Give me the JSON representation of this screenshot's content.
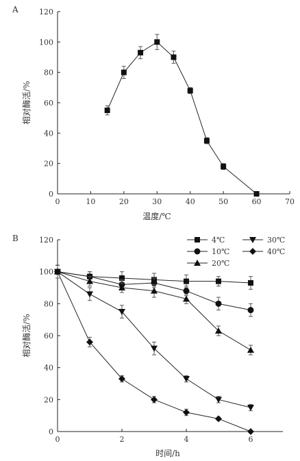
{
  "chart_data": [
    {
      "type": "line",
      "panel_label": "A",
      "xlabel": "温度/℃",
      "ylabel": "相对酶活/%",
      "xlim": [
        0,
        70
      ],
      "ylim": [
        0,
        120
      ],
      "x_ticks": [
        0,
        10,
        20,
        30,
        40,
        50,
        60,
        70
      ],
      "y_ticks": [
        0,
        20,
        40,
        60,
        80,
        100,
        120
      ],
      "grid": false,
      "series": [
        {
          "marker": "square",
          "x": [
            15,
            20,
            25,
            30,
            35,
            40,
            45,
            50,
            60
          ],
          "y": [
            55,
            80,
            93,
            100,
            90,
            68,
            35,
            18,
            0
          ],
          "err": [
            3,
            4,
            4,
            5,
            4,
            2,
            2,
            2,
            0
          ]
        }
      ]
    },
    {
      "type": "line",
      "panel_label": "B",
      "xlabel": "时间/h",
      "ylabel": "相对酶活/%",
      "xlim": [
        0,
        7
      ],
      "ylim": [
        0,
        120
      ],
      "x_ticks": [
        0,
        2,
        4,
        6
      ],
      "y_ticks": [
        0,
        20,
        40,
        60,
        80,
        100,
        120
      ],
      "grid": false,
      "legend": "top-right",
      "series": [
        {
          "name": "4℃",
          "marker": "square",
          "x": [
            0,
            1,
            2,
            3,
            4,
            5,
            6
          ],
          "y": [
            100,
            97,
            96,
            95,
            94,
            94,
            93
          ],
          "err": [
            4,
            3,
            4,
            4,
            4,
            3,
            4
          ]
        },
        {
          "name": "10℃",
          "marker": "circle",
          "x": [
            0,
            1,
            2,
            3,
            4,
            5,
            6
          ],
          "y": [
            100,
            97,
            92,
            93,
            88,
            80,
            76
          ],
          "err": [
            4,
            3,
            3,
            3,
            3,
            4,
            4
          ]
        },
        {
          "name": "20℃",
          "marker": "triangle-up",
          "x": [
            0,
            1,
            2,
            3,
            4,
            5,
            6
          ],
          "y": [
            100,
            94,
            90,
            88,
            83,
            63,
            51
          ],
          "err": [
            4,
            3,
            3,
            4,
            3,
            3,
            3
          ]
        },
        {
          "name": "30℃",
          "marker": "triangle-down",
          "x": [
            0,
            1,
            2,
            3,
            4,
            5,
            6
          ],
          "y": [
            100,
            86,
            75,
            52,
            33,
            20,
            15
          ],
          "err": [
            4,
            4,
            4,
            4,
            2,
            2,
            2
          ]
        },
        {
          "name": "40℃",
          "marker": "diamond",
          "x": [
            0,
            1,
            2,
            3,
            4,
            5,
            6
          ],
          "y": [
            100,
            56,
            33,
            20,
            12,
            8,
            0
          ],
          "err": [
            4,
            3,
            2,
            2,
            2,
            1,
            0
          ]
        }
      ]
    }
  ]
}
